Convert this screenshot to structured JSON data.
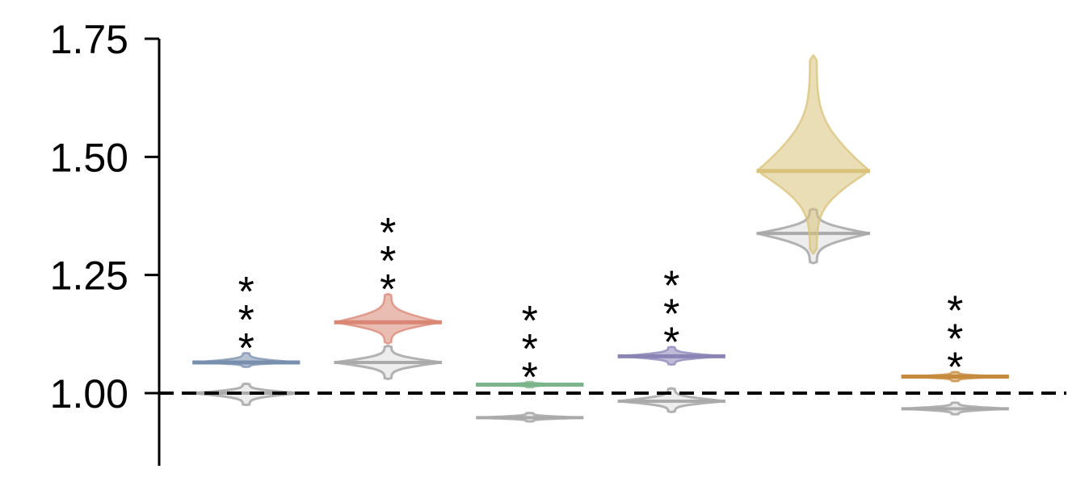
{
  "chart_data": {
    "type": "violin",
    "title": "",
    "xlabel": "",
    "ylabel": "",
    "ylim": [
      0.85,
      1.75
    ],
    "y_ticks": [
      1.0,
      1.25,
      1.5,
      1.75
    ],
    "y_tick_labels": [
      "1.00",
      "1.25",
      "1.50",
      "1.75"
    ],
    "reference_line": 1.0,
    "grid": false,
    "legend": "none",
    "groups": [
      {
        "color": "#7a8fad",
        "significance": "***",
        "colored": {
          "median": 1.065,
          "min": 1.055,
          "max": 1.085,
          "width": 0.9
        },
        "gray": {
          "median": 1.0,
          "min": 0.975,
          "max": 1.02,
          "width": 0.9
        }
      },
      {
        "color": "#d98675",
        "significance": "***",
        "colored": {
          "median": 1.15,
          "min": 1.105,
          "max": 1.21,
          "width": 0.9
        },
        "gray": {
          "median": 1.065,
          "min": 1.03,
          "max": 1.1,
          "width": 0.9
        }
      },
      {
        "color": "#7bb48a",
        "significance": "***",
        "colored": {
          "median": 1.018,
          "min": 1.012,
          "max": 1.024,
          "width": 0.9
        },
        "gray": {
          "median": 0.948,
          "min": 0.94,
          "max": 0.958,
          "width": 0.9
        }
      },
      {
        "color": "#8a84b6",
        "significance": "***",
        "colored": {
          "median": 1.078,
          "min": 1.06,
          "max": 1.098,
          "width": 0.9
        },
        "gray": {
          "median": 0.983,
          "min": 0.96,
          "max": 1.01,
          "width": 0.9
        }
      },
      {
        "color": "#d9c27a",
        "significance": "",
        "colored": {
          "median": 1.47,
          "min": 1.295,
          "max": 1.715,
          "width": 0.95
        },
        "gray": {
          "median": 1.338,
          "min": 1.275,
          "max": 1.39,
          "width": 0.95
        }
      },
      {
        "color": "#c68a3e",
        "significance": "***",
        "colored": {
          "median": 1.035,
          "min": 1.025,
          "max": 1.045,
          "width": 0.9
        },
        "gray": {
          "median": 0.967,
          "min": 0.955,
          "max": 0.98,
          "width": 0.9
        }
      }
    ]
  }
}
